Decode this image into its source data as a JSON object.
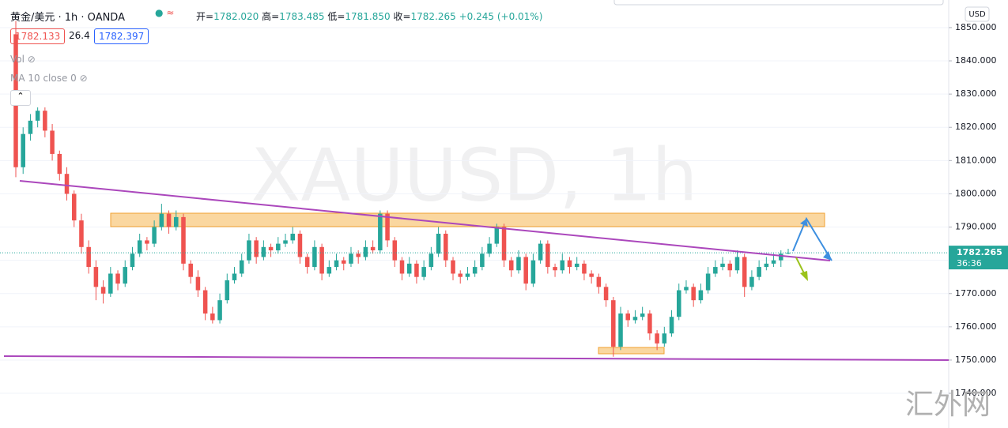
{
  "chart_data": {
    "type": "candlestick",
    "symbol": "黄金/美元 · 1h · OANDA",
    "ohlc_legend": [
      {
        "label": "开=",
        "value": "1782.020"
      },
      {
        "label": "高=",
        "value": "1783.485"
      },
      {
        "label": "低=",
        "value": "1781.850"
      },
      {
        "label": "收=",
        "value": "1782.265"
      }
    ],
    "change": "+0.245 (+0.01%)",
    "bid": "1782.133",
    "spread": "26.4",
    "ask": "1782.397",
    "indicators": [
      "Vol",
      "MA 10 close 0"
    ],
    "currency": "USD",
    "watermark": "XAUUSD, 1h",
    "last_price_label": "1782.265",
    "countdown": "36:36",
    "up_color": "#26a69a",
    "down_color": "#ef5350",
    "ylim": [
      1733.6,
      1858.3
    ],
    "yticks": [
      {
        "value": 1740,
        "label": "1740.000"
      },
      {
        "value": 1750,
        "label": "1750.000"
      },
      {
        "value": 1760,
        "label": "1760.000"
      },
      {
        "value": 1770,
        "label": "1770.000"
      },
      {
        "value": 1780,
        "label": "1780.000"
      },
      {
        "value": 1790,
        "label": "1790.000"
      },
      {
        "value": 1800,
        "label": "1800.000"
      },
      {
        "value": 1810,
        "label": "1810.000"
      },
      {
        "value": 1820,
        "label": "1820.000"
      },
      {
        "value": 1830,
        "label": "1830.000"
      },
      {
        "value": 1840,
        "label": "1840.000"
      },
      {
        "value": 1850,
        "label": "1850.000"
      }
    ],
    "grid": true,
    "open": [
      1848,
      1808,
      1818,
      1822,
      1825,
      1819,
      1812,
      1806,
      1800,
      1792,
      1784,
      1778,
      1772,
      1770,
      1776,
      1773,
      1778,
      1782,
      1786,
      1785,
      1790,
      1794,
      1790,
      1793,
      1779,
      1775,
      1771,
      1764,
      1762,
      1768,
      1774,
      1776,
      1780,
      1786,
      1781,
      1784,
      1783,
      1785,
      1786,
      1788,
      1781,
      1778,
      1784,
      1776,
      1778,
      1780,
      1779,
      1782,
      1781,
      1784,
      1783,
      1794,
      1786,
      1780,
      1776,
      1779,
      1775,
      1778,
      1782,
      1788,
      1780,
      1776,
      1775,
      1776,
      1778,
      1782,
      1785,
      1790,
      1780,
      1777,
      1781,
      1773,
      1780,
      1785,
      1778,
      1777,
      1780,
      1778,
      1779,
      1776,
      1775,
      1772,
      1768,
      1754,
      1764,
      1762,
      1763,
      1764,
      1758,
      1755,
      1758,
      1763,
      1771,
      1772,
      1768,
      1771,
      1776,
      1778,
      1779,
      1777,
      1781,
      1772,
      1775,
      1778,
      1779,
      1780,
      1782.02
    ],
    "high": [
      1852,
      1820,
      1824,
      1826,
      1826,
      1821,
      1813,
      1808,
      1801,
      1794,
      1786,
      1780,
      1774,
      1778,
      1777,
      1780,
      1784,
      1788,
      1787,
      1792,
      1797,
      1795,
      1795,
      1794,
      1780,
      1777,
      1772,
      1766,
      1770,
      1776,
      1778,
      1782,
      1788,
      1787,
      1786,
      1785,
      1787,
      1788,
      1790,
      1789,
      1782,
      1786,
      1785,
      1780,
      1782,
      1781,
      1784,
      1783,
      1786,
      1786,
      1795,
      1795,
      1787,
      1781,
      1781,
      1780,
      1780,
      1784,
      1790,
      1789,
      1781,
      1777,
      1778,
      1780,
      1784,
      1787,
      1791,
      1791,
      1781,
      1783,
      1782,
      1782,
      1786,
      1786,
      1779,
      1782,
      1781,
      1781,
      1780,
      1777,
      1776,
      1773,
      1769,
      1766,
      1765,
      1765,
      1766,
      1765,
      1759,
      1760,
      1765,
      1773,
      1774,
      1773,
      1773,
      1778,
      1780,
      1781,
      1780,
      1783,
      1782,
      1777,
      1780,
      1781,
      1782,
      1783,
      1783.485
    ],
    "low": [
      1805,
      1806,
      1816,
      1820,
      1817,
      1810,
      1804,
      1798,
      1790,
      1782,
      1776,
      1768,
      1767,
      1769,
      1771,
      1772,
      1777,
      1781,
      1783,
      1784,
      1789,
      1788,
      1789,
      1777,
      1773,
      1769,
      1762,
      1761,
      1761,
      1767,
      1773,
      1775,
      1779,
      1779,
      1780,
      1781,
      1782,
      1784,
      1785,
      1779,
      1776,
      1777,
      1774,
      1775,
      1777,
      1777,
      1778,
      1779,
      1780,
      1782,
      1782,
      1784,
      1778,
      1774,
      1775,
      1773,
      1774,
      1777,
      1781,
      1778,
      1774,
      1773,
      1774,
      1775,
      1777,
      1781,
      1784,
      1778,
      1775,
      1776,
      1771,
      1772,
      1779,
      1776,
      1775,
      1776,
      1776,
      1777,
      1774,
      1773,
      1770,
      1766,
      1751,
      1753,
      1760,
      1761,
      1762,
      1756,
      1753,
      1754,
      1757,
      1762,
      1770,
      1766,
      1767,
      1770,
      1775,
      1777,
      1775,
      1776,
      1769,
      1771,
      1774,
      1777,
      1778,
      1778,
      1781.85
    ],
    "close": [
      1808,
      1818,
      1822,
      1825,
      1819,
      1812,
      1806,
      1800,
      1792,
      1784,
      1778,
      1772,
      1770,
      1776,
      1773,
      1778,
      1782,
      1786,
      1785,
      1790,
      1794,
      1790,
      1793,
      1779,
      1775,
      1771,
      1764,
      1762,
      1768,
      1774,
      1776,
      1780,
      1786,
      1781,
      1784,
      1783,
      1785,
      1786,
      1788,
      1781,
      1778,
      1784,
      1776,
      1778,
      1780,
      1779,
      1782,
      1781,
      1784,
      1783,
      1794,
      1786,
      1780,
      1776,
      1779,
      1775,
      1778,
      1782,
      1788,
      1780,
      1776,
      1775,
      1776,
      1778,
      1782,
      1785,
      1790,
      1780,
      1777,
      1781,
      1773,
      1780,
      1785,
      1778,
      1777,
      1780,
      1778,
      1779,
      1776,
      1775,
      1772,
      1768,
      1754,
      1764,
      1762,
      1763,
      1764,
      1758,
      1755,
      1758,
      1763,
      1771,
      1772,
      1768,
      1771,
      1776,
      1778,
      1779,
      1777,
      1781,
      1772,
      1775,
      1778,
      1779,
      1780,
      1782,
      1782.265
    ]
  }
}
